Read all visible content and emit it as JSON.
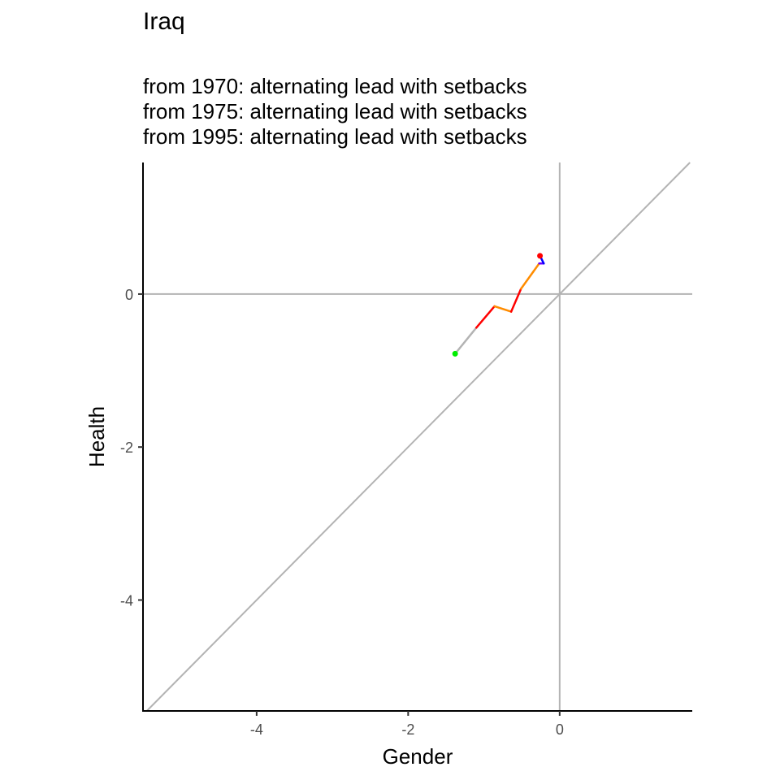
{
  "title": "Iraq",
  "subtitle_lines": [
    "from 1970:  alternating lead with setbacks",
    "from 1975:  alternating lead with setbacks",
    "from 1995:  alternating lead with setbacks"
  ],
  "chart_data": {
    "type": "line",
    "title": "Iraq",
    "xlabel": "Gender",
    "ylabel": "Health",
    "xlim": [
      -5.5,
      1.75
    ],
    "ylim": [
      -5.45,
      1.72
    ],
    "x_ticks": [
      -4,
      -2,
      0
    ],
    "y_ticks": [
      0,
      -2,
      -4
    ],
    "x_tick_labels": [
      "-4",
      "-2",
      "0"
    ],
    "y_tick_labels": [
      "0",
      "-2",
      "-4"
    ],
    "reference_lines": {
      "x_zero": true,
      "y_zero": true,
      "diagonal": true,
      "color": "#b3b3b3"
    },
    "grid": false,
    "series": [
      {
        "points": [
          {
            "x": -1.38,
            "y": -0.78
          },
          {
            "x": -1.1,
            "y": -0.44
          },
          {
            "x": -0.86,
            "y": -0.16
          },
          {
            "x": -0.64,
            "y": -0.23
          },
          {
            "x": -0.51,
            "y": 0.07
          },
          {
            "x": -0.35,
            "y": 0.29
          },
          {
            "x": -0.27,
            "y": 0.4
          },
          {
            "x": -0.21,
            "y": 0.4
          },
          {
            "x": -0.26,
            "y": 0.5
          }
        ],
        "segment_colors": [
          "#b3b3b3",
          "#ff0000",
          "#ff8c00",
          "#ff0000",
          "#ff8c00",
          "#ff8c00",
          "#6a00ff",
          "#0000ff",
          "#6a00ff"
        ]
      }
    ],
    "start_point": {
      "x": -1.38,
      "y": -0.78,
      "color": "#00ee00"
    },
    "end_point": {
      "x": -0.26,
      "y": 0.5,
      "color": "#ff0000"
    }
  }
}
